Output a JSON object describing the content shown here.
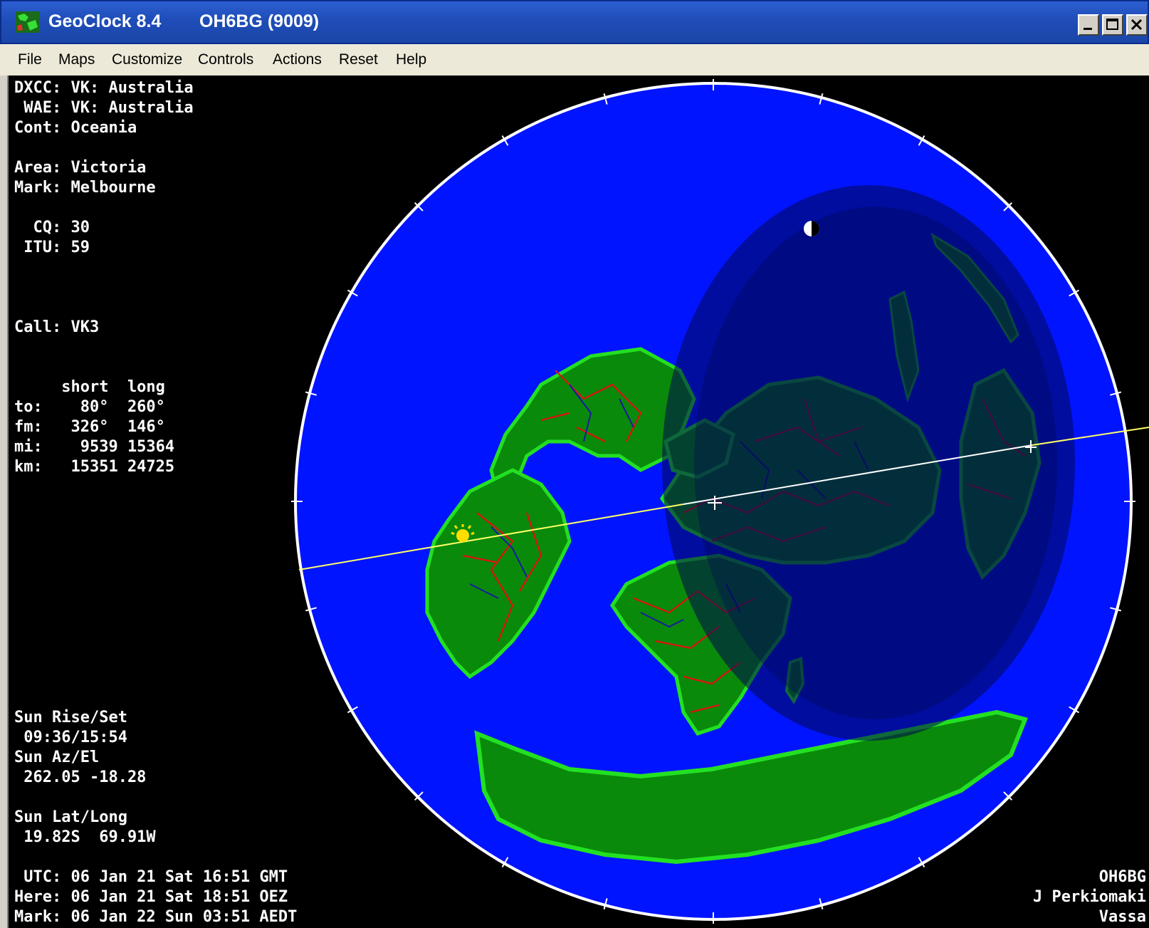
{
  "window": {
    "app_title": "GeoClock 8.4",
    "callsign_title": "OH6BG  (9009)"
  },
  "menu": [
    "File",
    "Maps",
    "Customize",
    "Controls",
    "Actions",
    "Reset",
    "Help"
  ],
  "info": {
    "dxcc": "DXCC: VK: Australia",
    "wae": " WAE: VK: Australia",
    "cont": "Cont: Oceania",
    "area": "Area: Victoria",
    "mark": "Mark: Melbourne",
    "cq": "  CQ: 30",
    "itu": " ITU: 59",
    "call": "Call: VK3"
  },
  "bearing_table": {
    "header": "     short  long",
    "to": "to:    80°  260°",
    "fm": "fm:   326°  146°",
    "mi": "mi:    9539 15364",
    "km": "km:   15351 24725"
  },
  "sun": {
    "riseset_label": "Sun Rise/Set",
    "riseset_value": " 09:36/15:54",
    "azel_label": "Sun Az/El",
    "azel_value": " 262.05 -18.28",
    "latlong_label": "Sun Lat/Long",
    "latlong_value": " 19.82S  69.91W"
  },
  "times": {
    "utc": " UTC: 06 Jan 21 Sat 16:51 GMT",
    "here": "Here: 06 Jan 21 Sat 18:51 OEZ",
    "mark": "Mark: 06 Jan 22 Sun 03:51 AEDT"
  },
  "credits": {
    "line1": "OH6BG",
    "line2": "J Perkiomaki",
    "line3": "Vassa"
  },
  "colors": {
    "ocean": "#0014ff",
    "land": "#0a8a0a",
    "land_edge": "#22e022",
    "borders": "#e01010",
    "rivers": "#1a1aa0",
    "night": "#000850",
    "path_yellow": "#ffff66",
    "path_white": "#ffffff",
    "sun": "#ffdd00"
  },
  "icons": {
    "app_icon": "globe-map-icon",
    "sun_marker": "sun-icon",
    "moon_marker": "moon-icon",
    "qth_marker": "crosshair-icon",
    "target_marker": "crosshair-icon"
  }
}
